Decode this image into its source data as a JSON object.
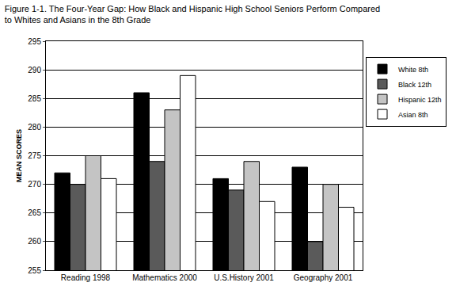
{
  "chart_data": {
    "type": "bar",
    "title": [
      "Figure 1-1. The Four-Year Gap: How Black and Hispanic High School Seniors Perform Compared",
      "to Whites and Asians in the 8th Grade"
    ],
    "y_label": "MEAN SCORES",
    "categories": [
      "Reading 1998",
      "Mathematics 2000",
      "U.S.History 2001",
      "Geography 2001"
    ],
    "series": [
      {
        "name": "White 8th",
        "color": "#000000",
        "values": [
          272,
          286,
          271,
          273
        ]
      },
      {
        "name": "Black 12th",
        "color": "#5a5a5a",
        "values": [
          270,
          274,
          269,
          260
        ]
      },
      {
        "name": "Hispanic 12th",
        "color": "#c4c4c4",
        "values": [
          275,
          283,
          274,
          270
        ]
      },
      {
        "name": "Asian 8th",
        "color": "#ffffff",
        "values": [
          271,
          289,
          267,
          266
        ]
      }
    ],
    "ylim": [
      255,
      295
    ],
    "yticks": [
      255,
      260,
      265,
      270,
      275,
      280,
      285,
      290,
      295
    ],
    "grid": true,
    "legend": "right"
  }
}
